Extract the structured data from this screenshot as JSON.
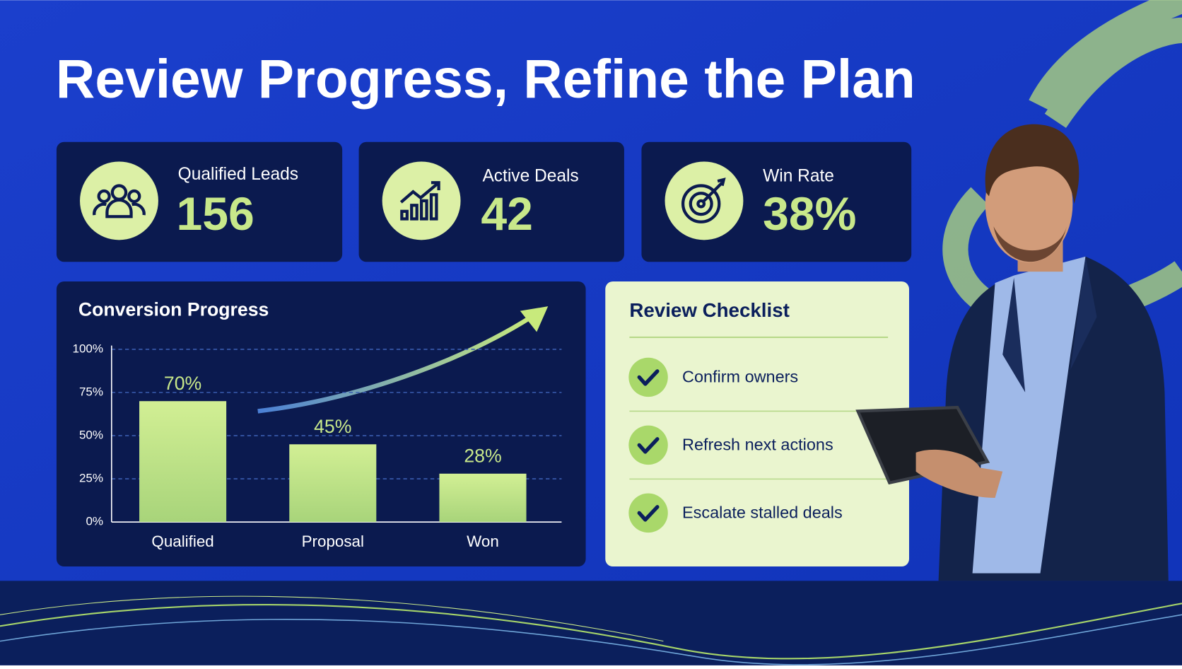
{
  "header": {
    "title": "Review Progress, Refine the Plan"
  },
  "kpis": [
    {
      "label": "Qualified Leads",
      "value": "156"
    },
    {
      "label": "Active Deals",
      "value": "42"
    },
    {
      "label": "Win Rate",
      "value": "38%"
    }
  ],
  "chart_data": {
    "type": "bar",
    "title": "Conversion Progress",
    "categories": [
      "Qualified",
      "Proposal",
      "Won"
    ],
    "values": [
      70,
      45,
      28
    ],
    "value_labels": [
      "70%",
      "45%",
      "28%"
    ],
    "color": "#c8e88a",
    "ylim": [
      0,
      100
    ],
    "yticks": [
      {
        "value": 0,
        "label": "0%"
      },
      {
        "value": 25,
        "label": "25%"
      },
      {
        "value": 50,
        "label": "50%"
      },
      {
        "value": 75,
        "label": "75%"
      },
      {
        "value": 100,
        "label": "100%"
      }
    ],
    "grid": true
  },
  "checklist": {
    "title": "Review Checklist",
    "items": [
      "Confirm owners",
      "Refresh next actions",
      "Escalate stalled deals"
    ]
  }
}
